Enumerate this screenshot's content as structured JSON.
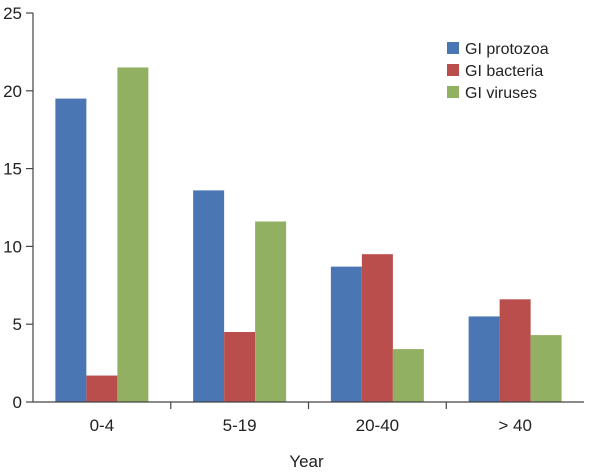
{
  "chart_data": {
    "type": "bar",
    "title": "",
    "xlabel": "Year",
    "ylabel": "",
    "categories": [
      "0-4",
      "5-19",
      "20-40",
      "> 40"
    ],
    "ylim": [
      0,
      25
    ],
    "yticks": [
      0,
      5,
      10,
      15,
      20,
      25
    ],
    "grid": false,
    "legend_position": "top-right",
    "series": [
      {
        "name": "GI protozoa",
        "color": "#4a77b4",
        "values": [
          19.5,
          13.6,
          8.7,
          5.5
        ]
      },
      {
        "name": "GI bacteria",
        "color": "#b94e4c",
        "values": [
          1.7,
          4.5,
          9.5,
          6.6
        ]
      },
      {
        "name": "GI viruses",
        "color": "#92b062",
        "values": [
          21.5,
          11.6,
          3.4,
          4.3
        ]
      }
    ]
  }
}
